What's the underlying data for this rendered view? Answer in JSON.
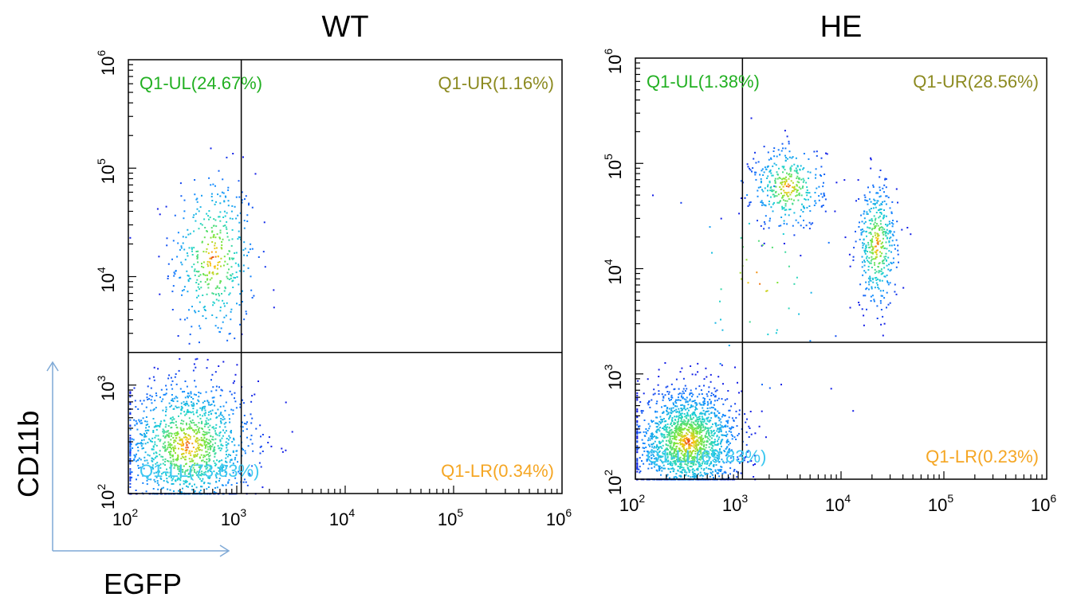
{
  "figure": {
    "shared_x_label": "EGFP",
    "shared_y_label": "CD11b",
    "arrow_color": "#7fa9d6"
  },
  "chart_data": [
    {
      "type": "scatter",
      "title": "WT",
      "x_scale": "log",
      "y_scale": "log",
      "xlim": [
        100,
        1000000
      ],
      "ylim": [
        100,
        1000000
      ],
      "x_ticks": [
        {
          "base": "10",
          "exp": "2"
        },
        {
          "base": "10",
          "exp": "3"
        },
        {
          "base": "10",
          "exp": "4"
        },
        {
          "base": "10",
          "exp": "5"
        },
        {
          "base": "10",
          "exp": "6"
        }
      ],
      "y_ticks": [
        {
          "base": "10",
          "exp": "2"
        },
        {
          "base": "10",
          "exp": "3"
        },
        {
          "base": "10",
          "exp": "4"
        },
        {
          "base": "10",
          "exp": "5"
        },
        {
          "base": "10",
          "exp": "6"
        }
      ],
      "gate": {
        "x": 1100,
        "y": 2000
      },
      "quadrants": [
        {
          "name": "UL",
          "label": "Q1-UL(24.67%)",
          "percent": 24.67,
          "color": "#22b022"
        },
        {
          "name": "UR",
          "label": "Q1-UR(1.16%)",
          "percent": 1.16,
          "color": "#8c8a20"
        },
        {
          "name": "LL",
          "label": "Q1-LL(73.83%)",
          "percent": 73.83,
          "color": "#3cc8f0"
        },
        {
          "name": "LR",
          "label": "Q1-LR(0.34%)",
          "percent": 0.34,
          "color": "#f5a623"
        }
      ],
      "populations": [
        {
          "x": 600,
          "y": 15000,
          "spread_x": 0.2,
          "spread_y": 0.4,
          "share": 0.25
        },
        {
          "x": 350,
          "y": 280,
          "spread_x": 0.3,
          "spread_y": 0.3,
          "share": 0.74
        }
      ]
    },
    {
      "type": "scatter",
      "title": "HE",
      "x_scale": "log",
      "y_scale": "log",
      "xlim": [
        100,
        1000000
      ],
      "ylim": [
        100,
        1000000
      ],
      "x_ticks": [
        {
          "base": "10",
          "exp": "2"
        },
        {
          "base": "10",
          "exp": "3"
        },
        {
          "base": "10",
          "exp": "4"
        },
        {
          "base": "10",
          "exp": "5"
        },
        {
          "base": "10",
          "exp": "6"
        }
      ],
      "y_ticks": [
        {
          "base": "10",
          "exp": "2"
        },
        {
          "base": "10",
          "exp": "3"
        },
        {
          "base": "10",
          "exp": "4"
        },
        {
          "base": "10",
          "exp": "5"
        },
        {
          "base": "10",
          "exp": "6"
        }
      ],
      "gate": {
        "x": 1100,
        "y": 2000
      },
      "quadrants": [
        {
          "name": "UL",
          "label": "Q1-UL(1.38%)",
          "percent": 1.38,
          "color": "#22b022"
        },
        {
          "name": "UR",
          "label": "Q1-UR(28.56%)",
          "percent": 28.56,
          "color": "#8c8a20"
        },
        {
          "name": "LL",
          "label": "Q1-LL(69.83%)",
          "percent": 69.83,
          "color": "#3cc8f0"
        },
        {
          "name": "LR",
          "label": "Q1-LR(0.23%)",
          "percent": 0.23,
          "color": "#f5a623"
        }
      ],
      "populations": [
        {
          "x": 320,
          "y": 230,
          "spread_x": 0.25,
          "spread_y": 0.25,
          "share": 0.68
        },
        {
          "x": 3000,
          "y": 60000,
          "spread_x": 0.18,
          "spread_y": 0.2,
          "share": 0.14
        },
        {
          "x": 22000,
          "y": 17000,
          "spread_x": 0.1,
          "spread_y": 0.3,
          "share": 0.16
        },
        {
          "x": 1500,
          "y": 8000,
          "spread_x": 0.4,
          "spread_y": 0.5,
          "share": 0.02
        }
      ]
    }
  ]
}
